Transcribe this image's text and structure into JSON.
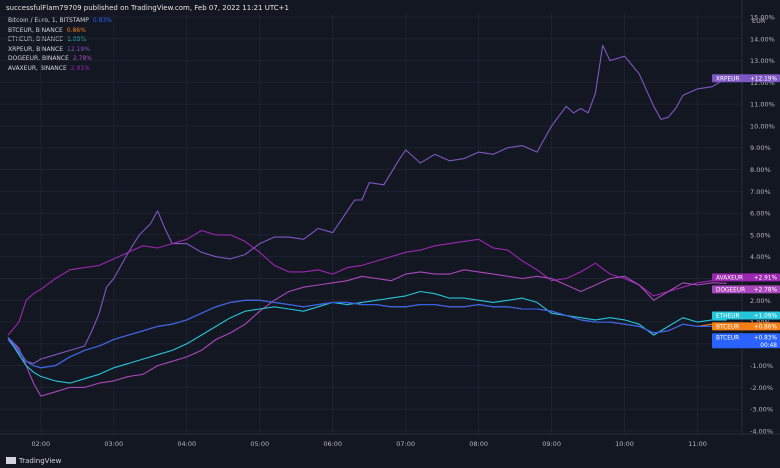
{
  "header": {
    "publisher_line": "successfulFlam79709 published on TradingView.com, Feb 07, 2022 11:21 UTC+1"
  },
  "legend": [
    {
      "label": "Bitcoin / Euro, 1, BITSTAMP",
      "value": "0.83%",
      "color": "#2962ff"
    },
    {
      "label": "BTCEUR, BINANCE",
      "value": "0.86%",
      "color": "#f57f17"
    },
    {
      "label": "ETHEUR, BINANCE",
      "value": "1.09%",
      "color": "#26c6da"
    },
    {
      "label": "XRPEUR, BINANCE",
      "value": "12.19%",
      "color": "#7e57c2"
    },
    {
      "label": "DOGEEUR, BINANCE",
      "value": "2.78%",
      "color": "#ab47bc"
    },
    {
      "label": "AVAXEUR, BINANCE",
      "value": "2.91%",
      "color": "#9c27b0"
    }
  ],
  "footer": {
    "brand": "TradingView"
  },
  "chart_data": {
    "type": "line",
    "currency_label": "EUR",
    "y_unit": "%",
    "ylim": [
      -4,
      15
    ],
    "y_ticks": [
      15,
      14,
      13,
      12,
      11,
      10,
      9,
      8,
      7,
      6,
      5,
      4,
      3,
      2,
      1,
      0,
      -1,
      -2,
      -3,
      -4
    ],
    "y_tick_labels": [
      "15.00%",
      "14.00%",
      "13.00%",
      "12.00%",
      "11.00%",
      "10.00%",
      "9.00%",
      "8.00%",
      "7.00%",
      "6.00%",
      "5.00%",
      "4.00%",
      "3.00%",
      "2.00%",
      "1.00%",
      "0.00%",
      "-1.00%",
      "-2.00%",
      "-3.00%",
      "-4.00%"
    ],
    "x_range_hours": [
      1.55,
      11.5
    ],
    "x_ticks": [
      2,
      3,
      4,
      5,
      6,
      7,
      8,
      9,
      10,
      11
    ],
    "x_tick_labels": [
      "02:00",
      "03:00",
      "04:00",
      "05:00",
      "06:00",
      "07:00",
      "08:00",
      "09:00",
      "10:00",
      "11:00"
    ],
    "grid": true,
    "series": [
      {
        "name": "XRPEUR",
        "color": "#7e57c2",
        "x": [
          1.55,
          1.6,
          1.7,
          1.8,
          1.9,
          2.0,
          2.2,
          2.4,
          2.6,
          2.7,
          2.8,
          2.9,
          3.0,
          3.1,
          3.2,
          3.35,
          3.5,
          3.6,
          3.7,
          3.8,
          4.0,
          4.2,
          4.4,
          4.6,
          4.8,
          5.0,
          5.2,
          5.4,
          5.6,
          5.8,
          6.0,
          6.2,
          6.3,
          6.4,
          6.5,
          6.7,
          6.9,
          7.0,
          7.2,
          7.4,
          7.6,
          7.8,
          8.0,
          8.2,
          8.4,
          8.6,
          8.8,
          9.0,
          9.2,
          9.3,
          9.4,
          9.5,
          9.6,
          9.7,
          9.8,
          10.0,
          10.2,
          10.4,
          10.5,
          10.6,
          10.7,
          10.8,
          11.0,
          11.2,
          11.3,
          11.4
        ],
        "y": [
          0.2,
          0.0,
          -0.4,
          -0.8,
          -0.9,
          -0.7,
          -0.5,
          -0.3,
          -0.1,
          0.6,
          1.4,
          2.6,
          3.0,
          3.6,
          4.2,
          5.0,
          5.5,
          6.1,
          5.3,
          4.6,
          4.6,
          4.2,
          4.0,
          3.9,
          4.1,
          4.6,
          4.9,
          4.9,
          4.8,
          5.3,
          5.1,
          6.1,
          6.6,
          6.6,
          7.4,
          7.3,
          8.4,
          8.9,
          8.3,
          8.7,
          8.4,
          8.5,
          8.8,
          8.7,
          9.0,
          9.1,
          8.8,
          10.0,
          10.9,
          10.6,
          10.8,
          10.6,
          11.5,
          13.7,
          13.0,
          13.2,
          12.4,
          10.9,
          10.3,
          10.4,
          10.8,
          11.4,
          11.7,
          11.8,
          12.0,
          12.19
        ]
      },
      {
        "name": "AVAXEUR",
        "color": "#9c27b0",
        "x": [
          1.55,
          1.7,
          1.8,
          1.9,
          2.0,
          2.2,
          2.4,
          2.6,
          2.8,
          3.0,
          3.2,
          3.4,
          3.6,
          3.8,
          4.0,
          4.2,
          4.4,
          4.6,
          4.8,
          5.0,
          5.2,
          5.4,
          5.6,
          5.8,
          6.0,
          6.2,
          6.4,
          6.6,
          6.8,
          7.0,
          7.2,
          7.4,
          7.6,
          7.8,
          8.0,
          8.2,
          8.4,
          8.6,
          8.8,
          9.0,
          9.2,
          9.4,
          9.6,
          9.8,
          10.0,
          10.2,
          10.4,
          10.6,
          10.8,
          11.0,
          11.2,
          11.4
        ],
        "y": [
          0.4,
          1.0,
          2.0,
          2.3,
          2.5,
          3.0,
          3.4,
          3.5,
          3.6,
          3.9,
          4.2,
          4.5,
          4.4,
          4.6,
          4.8,
          5.2,
          5.0,
          5.0,
          4.7,
          4.2,
          3.6,
          3.3,
          3.3,
          3.4,
          3.2,
          3.5,
          3.6,
          3.8,
          4.0,
          4.2,
          4.3,
          4.5,
          4.6,
          4.7,
          4.8,
          4.4,
          4.3,
          3.8,
          3.4,
          2.9,
          3.0,
          3.3,
          3.7,
          3.2,
          3.0,
          2.7,
          2.2,
          2.4,
          2.6,
          2.8,
          2.9,
          2.91
        ]
      },
      {
        "name": "DOGEEUR",
        "color": "#ab47bc",
        "x": [
          1.55,
          1.7,
          1.8,
          1.9,
          2.0,
          2.2,
          2.4,
          2.6,
          2.8,
          3.0,
          3.2,
          3.4,
          3.6,
          3.8,
          4.0,
          4.2,
          4.4,
          4.6,
          4.8,
          5.0,
          5.2,
          5.4,
          5.6,
          5.8,
          6.0,
          6.2,
          6.4,
          6.6,
          6.8,
          7.0,
          7.2,
          7.4,
          7.6,
          7.8,
          8.0,
          8.2,
          8.4,
          8.6,
          8.8,
          9.0,
          9.2,
          9.4,
          9.6,
          9.8,
          10.0,
          10.2,
          10.4,
          10.6,
          10.8,
          11.0,
          11.2,
          11.4
        ],
        "y": [
          0.3,
          -0.2,
          -1.0,
          -1.8,
          -2.4,
          -2.2,
          -2.0,
          -2.0,
          -1.8,
          -1.7,
          -1.5,
          -1.4,
          -1.0,
          -0.8,
          -0.6,
          -0.3,
          0.2,
          0.5,
          0.9,
          1.5,
          2.0,
          2.4,
          2.6,
          2.7,
          2.8,
          2.9,
          3.1,
          3.0,
          2.9,
          3.2,
          3.3,
          3.2,
          3.2,
          3.4,
          3.3,
          3.2,
          3.1,
          3.0,
          3.1,
          3.0,
          2.7,
          2.4,
          2.7,
          3.0,
          3.1,
          2.7,
          2.0,
          2.4,
          2.8,
          2.7,
          2.8,
          2.78
        ]
      },
      {
        "name": "ETHEUR",
        "color": "#26c6da",
        "x": [
          1.55,
          1.7,
          1.8,
          1.9,
          2.0,
          2.2,
          2.4,
          2.6,
          2.8,
          3.0,
          3.2,
          3.4,
          3.6,
          3.8,
          4.0,
          4.2,
          4.4,
          4.6,
          4.8,
          5.0,
          5.2,
          5.4,
          5.6,
          5.8,
          6.0,
          6.2,
          6.4,
          6.6,
          6.8,
          7.0,
          7.2,
          7.4,
          7.6,
          7.8,
          8.0,
          8.2,
          8.4,
          8.6,
          8.8,
          9.0,
          9.2,
          9.4,
          9.6,
          9.8,
          10.0,
          10.2,
          10.4,
          10.6,
          10.8,
          11.0,
          11.2,
          11.4
        ],
        "y": [
          0.3,
          -0.5,
          -1.0,
          -1.3,
          -1.5,
          -1.7,
          -1.8,
          -1.6,
          -1.4,
          -1.1,
          -0.9,
          -0.7,
          -0.5,
          -0.3,
          0.0,
          0.4,
          0.8,
          1.2,
          1.5,
          1.6,
          1.7,
          1.6,
          1.5,
          1.7,
          1.9,
          1.8,
          1.9,
          2.0,
          2.1,
          2.2,
          2.4,
          2.3,
          2.1,
          2.1,
          2.0,
          1.9,
          2.0,
          2.1,
          1.9,
          1.4,
          1.3,
          1.2,
          1.1,
          1.2,
          1.1,
          0.9,
          0.4,
          0.8,
          1.2,
          1.0,
          1.1,
          1.09
        ]
      },
      {
        "name": "BTCEUR",
        "color": "#f57f17",
        "x": [
          1.55,
          1.7,
          1.8,
          1.9,
          2.0,
          2.2,
          2.4,
          2.6,
          2.8,
          3.0,
          3.2,
          3.4,
          3.6,
          3.8,
          4.0,
          4.2,
          4.4,
          4.6,
          4.8,
          5.0,
          5.2,
          5.4,
          5.6,
          5.8,
          6.0,
          6.2,
          6.4,
          6.6,
          6.8,
          7.0,
          7.2,
          7.4,
          7.6,
          7.8,
          8.0,
          8.2,
          8.4,
          8.6,
          8.8,
          9.0,
          9.2,
          9.4,
          9.6,
          9.8,
          10.0,
          10.2,
          10.4,
          10.6,
          10.8,
          11.0,
          11.2,
          11.4
        ],
        "y": [
          0.3,
          -0.3,
          -0.8,
          -1.0,
          -1.1,
          -1.0,
          -0.6,
          -0.3,
          -0.1,
          0.2,
          0.4,
          0.6,
          0.8,
          0.9,
          1.1,
          1.4,
          1.7,
          1.9,
          2.0,
          2.0,
          1.9,
          1.8,
          1.7,
          1.8,
          1.9,
          1.9,
          1.8,
          1.8,
          1.7,
          1.7,
          1.8,
          1.8,
          1.7,
          1.7,
          1.8,
          1.7,
          1.7,
          1.6,
          1.6,
          1.5,
          1.3,
          1.1,
          1.0,
          1.0,
          0.9,
          0.8,
          0.5,
          0.6,
          0.9,
          0.8,
          0.9,
          0.86
        ]
      },
      {
        "name": "BTCEUR",
        "color": "#2962ff",
        "x": [
          1.55,
          1.7,
          1.8,
          1.9,
          2.0,
          2.2,
          2.4,
          2.6,
          2.8,
          3.0,
          3.2,
          3.4,
          3.6,
          3.8,
          4.0,
          4.2,
          4.4,
          4.6,
          4.8,
          5.0,
          5.2,
          5.4,
          5.6,
          5.8,
          6.0,
          6.2,
          6.4,
          6.6,
          6.8,
          7.0,
          7.2,
          7.4,
          7.6,
          7.8,
          8.0,
          8.2,
          8.4,
          8.6,
          8.8,
          9.0,
          9.2,
          9.4,
          9.6,
          9.8,
          10.0,
          10.2,
          10.4,
          10.6,
          10.8,
          11.0,
          11.2,
          11.4
        ],
        "y": [
          0.3,
          -0.3,
          -0.8,
          -1.0,
          -1.1,
          -1.0,
          -0.6,
          -0.3,
          -0.1,
          0.2,
          0.4,
          0.6,
          0.8,
          0.9,
          1.1,
          1.4,
          1.7,
          1.9,
          2.0,
          2.0,
          1.9,
          1.8,
          1.7,
          1.8,
          1.9,
          1.9,
          1.8,
          1.8,
          1.7,
          1.7,
          1.8,
          1.8,
          1.7,
          1.7,
          1.8,
          1.7,
          1.7,
          1.6,
          1.6,
          1.5,
          1.3,
          1.1,
          1.0,
          1.0,
          0.9,
          0.8,
          0.5,
          0.6,
          0.9,
          0.8,
          0.8,
          0.83
        ]
      }
    ],
    "price_labels": [
      {
        "text": "XRPEUR",
        "value_text": "+12.19%",
        "y": 12.19,
        "color": "#7e57c2"
      },
      {
        "text": "AVAXEUR",
        "value_text": "+2.91%",
        "y": 3.05,
        "color": "#9c27b0"
      },
      {
        "text": "DOGEEUR",
        "value_text": "+2.78%",
        "y": 2.5,
        "color": "#ab47bc"
      },
      {
        "text": "ETHEUR",
        "value_text": "+1.09%",
        "y": 1.3,
        "color": "#26c6da"
      },
      {
        "text": "BTCEUR",
        "value_text": "+0.86%",
        "y": 0.8,
        "color": "#f57f17"
      },
      {
        "text": "BTCEUR",
        "value_text": "+0.83%",
        "y": 0.3,
        "color": "#2962ff",
        "sub": "00:48"
      }
    ]
  }
}
